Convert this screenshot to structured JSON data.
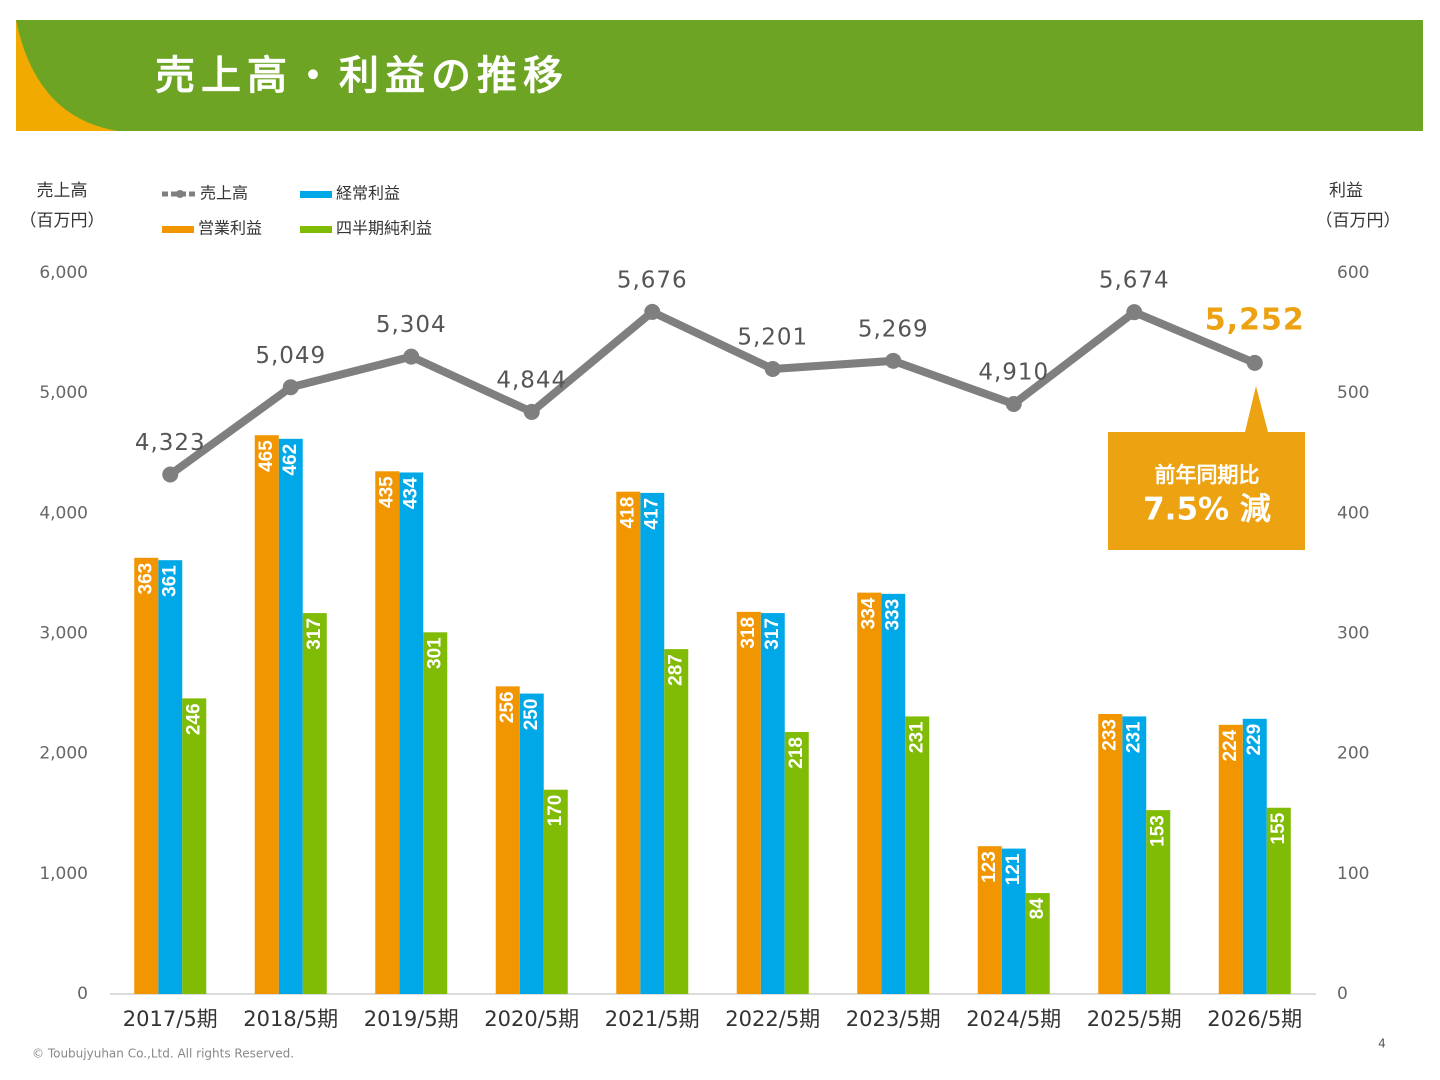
{
  "header": {
    "title": "売上高・利益の推移"
  },
  "chart_data": {
    "type": "combo",
    "y_axis_title": [
      "売上高",
      "（百万円）"
    ],
    "y2_axis_title": [
      "利益",
      "（百万円）"
    ],
    "categories": [
      "2017/5期",
      "2018/5期",
      "2019/5期",
      "2020/5期",
      "2021/5期",
      "2022/5期",
      "2023/5期",
      "2024/5期",
      "2025/5期",
      "2026/5期"
    ],
    "series": [
      {
        "name": "売上高",
        "type": "line",
        "color": "#7f7f7f",
        "values": [
          4323,
          5049,
          5304,
          4844,
          5676,
          5201,
          5269,
          4910,
          5674,
          5252
        ],
        "value_labels": [
          "4,323",
          "5,049",
          "5,304",
          "4,844",
          "5,676",
          "5,201",
          "5,269",
          "4,910",
          "5,674",
          "5,252"
        ]
      },
      {
        "name": "経常利益",
        "type": "bar",
        "axis": "y2",
        "color": "#00a8e8",
        "values": [
          361,
          462,
          434,
          250,
          417,
          317,
          333,
          121,
          231,
          229
        ]
      },
      {
        "name": "営業利益",
        "type": "bar",
        "axis": "y2",
        "color": "#f19500",
        "values": [
          363,
          465,
          435,
          256,
          418,
          318,
          334,
          123,
          233,
          224
        ]
      },
      {
        "name": "四半期純利益",
        "type": "bar",
        "axis": "y2",
        "color": "#80bb05",
        "values": [
          246,
          317,
          301,
          170,
          287,
          218,
          231,
          84,
          153,
          155
        ]
      }
    ],
    "ylim": [
      0,
      6000
    ],
    "yticks": [
      {
        "value": 0,
        "label": "0"
      },
      {
        "value": 1000,
        "label": "1,000"
      },
      {
        "value": 2000,
        "label": "2,000"
      },
      {
        "value": 3000,
        "label": "3,000"
      },
      {
        "value": 4000,
        "label": "4,000"
      },
      {
        "value": 5000,
        "label": "5,000"
      },
      {
        "value": 6000,
        "label": "6,000"
      }
    ],
    "y2lim": [
      0,
      600
    ],
    "y2ticks": [
      0,
      100,
      200,
      300,
      400,
      500,
      600
    ],
    "annotations": [
      "前年同期比",
      "7.5% 減"
    ]
  },
  "footer": {
    "copyright": "© Toubujyuhan Co.,Ltd. All rights Reserved.",
    "page": "4"
  }
}
